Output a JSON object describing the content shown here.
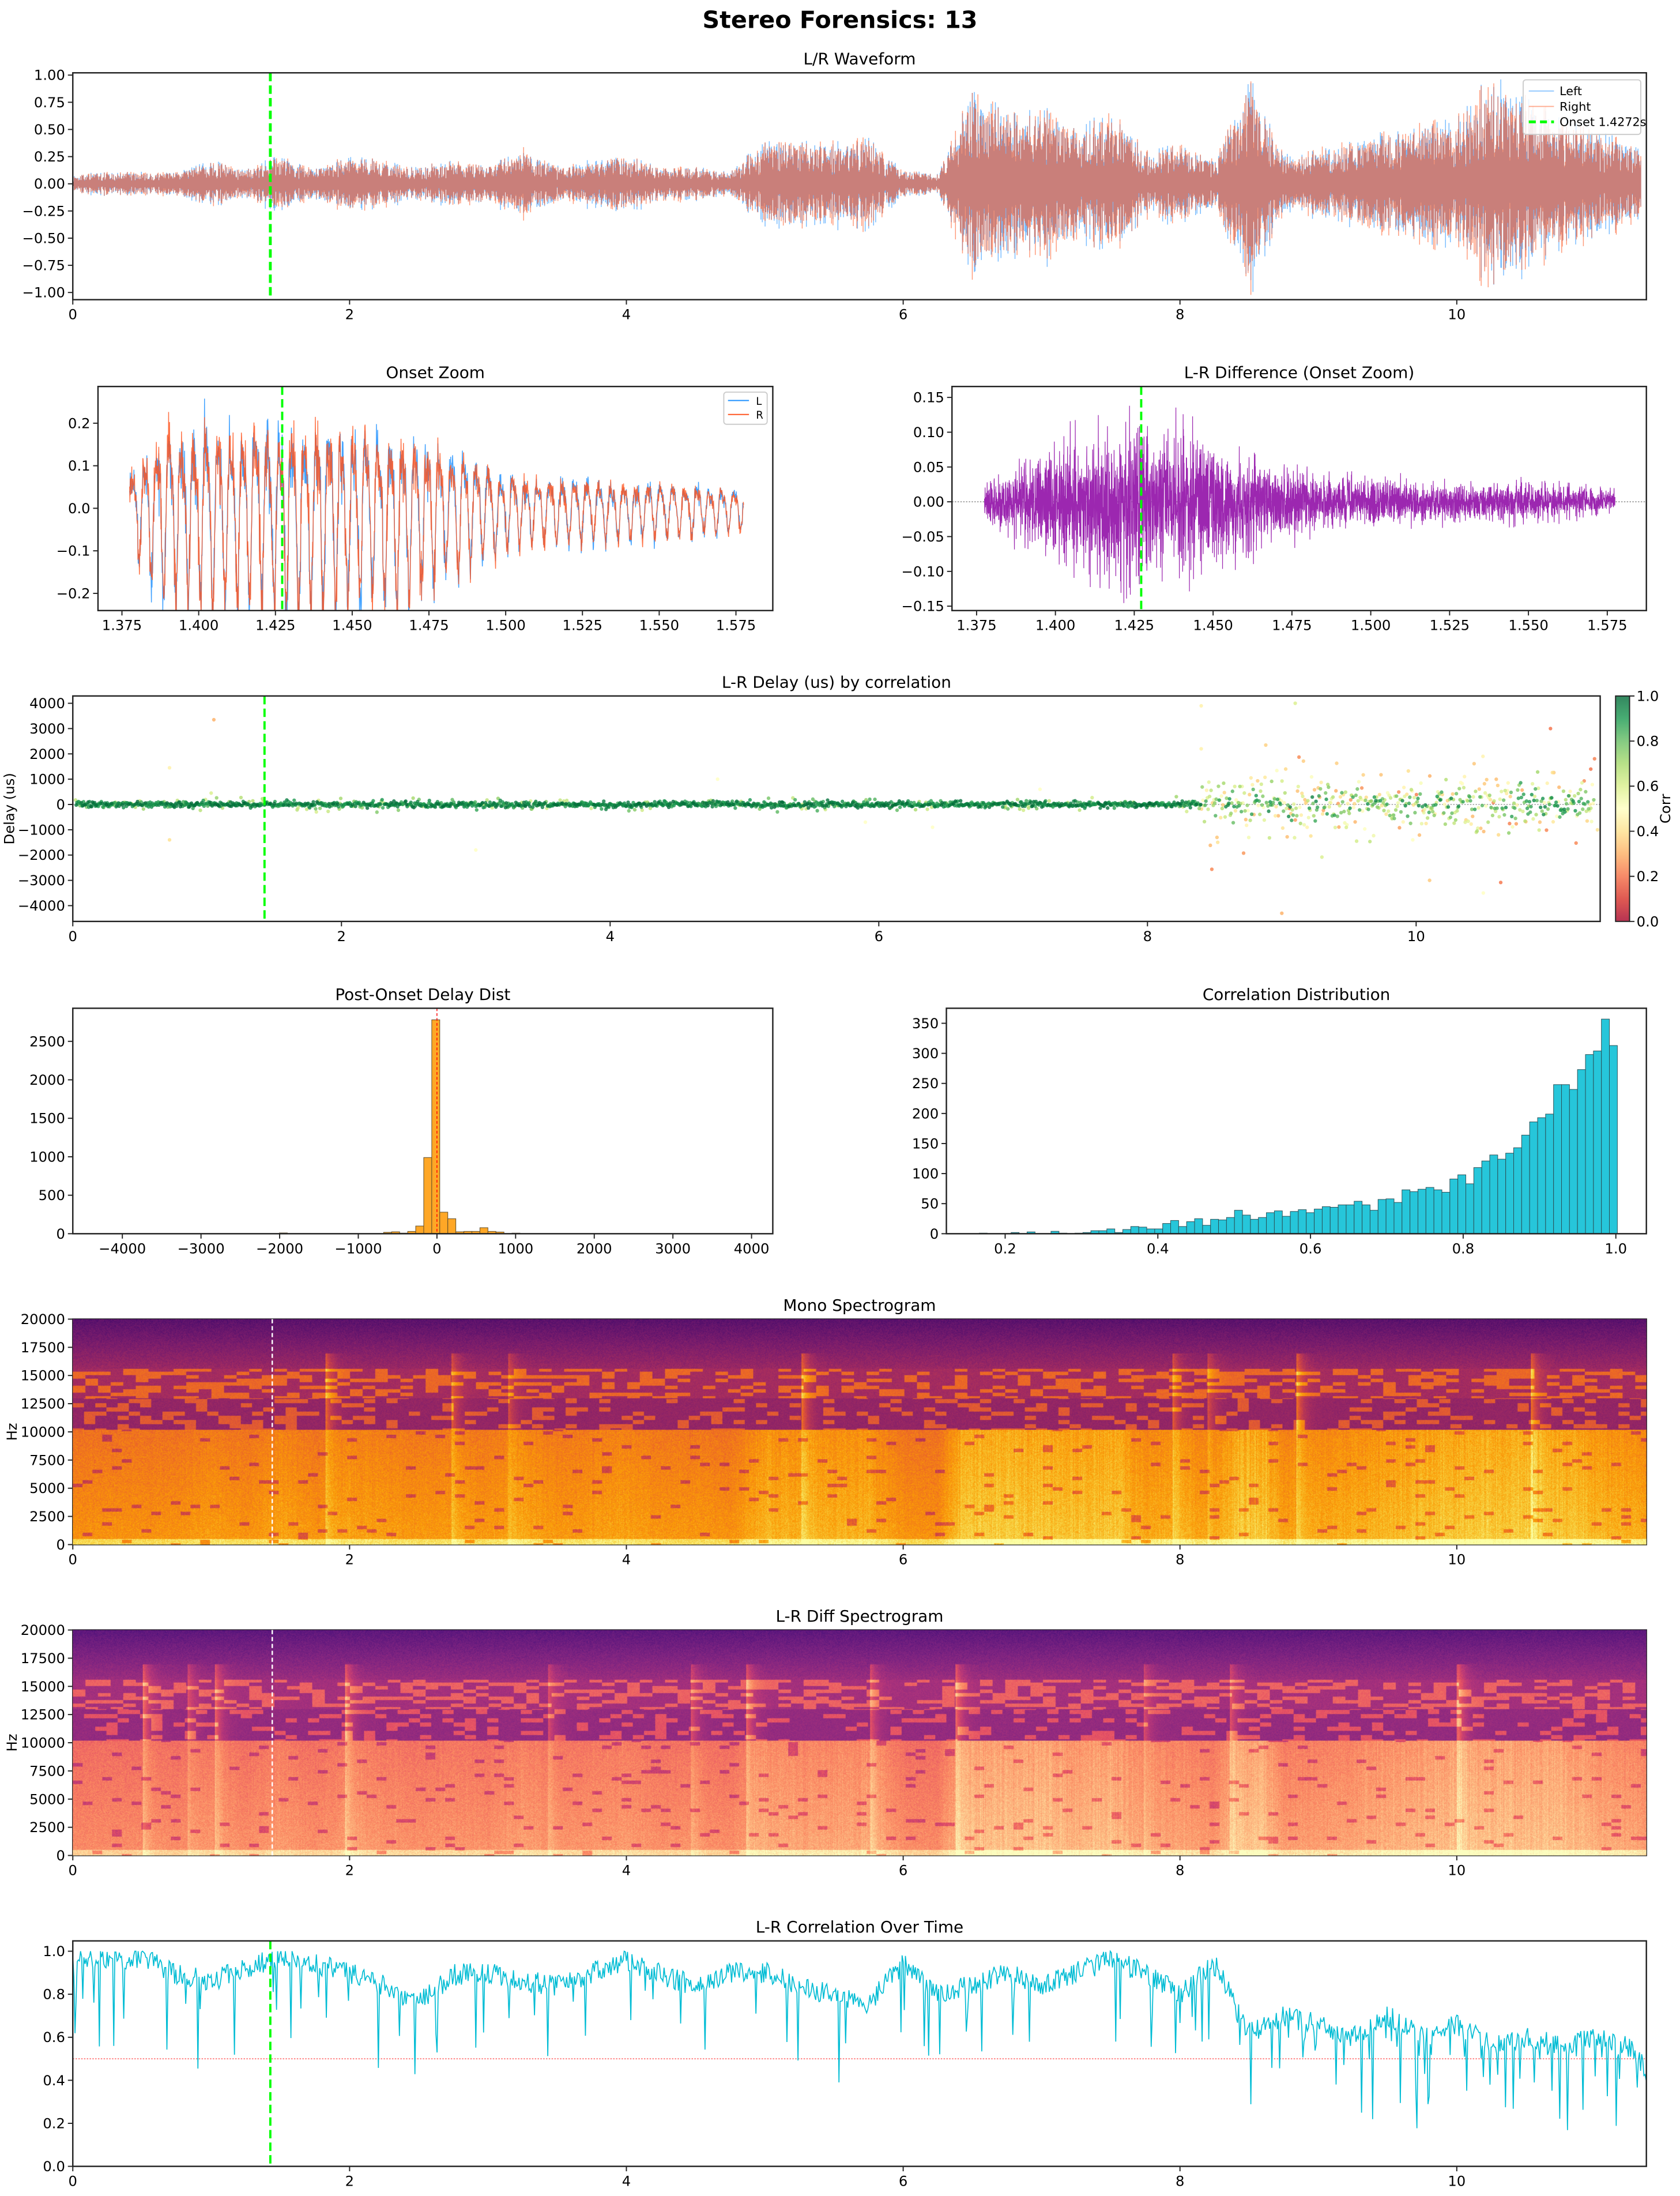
{
  "figure": {
    "suptitle": "Stereo Forensics: 13"
  },
  "chart_data": [
    {
      "type": "line",
      "title": "L/R Waveform",
      "xlim": [
        0,
        11.37
      ],
      "ylim": [
        -1.066,
        1.021
      ],
      "xticks": [
        0,
        2,
        4,
        6,
        8,
        10
      ],
      "xtick_labels": [
        "0",
        "2",
        "4",
        "6",
        "8",
        "10"
      ],
      "yticks": [
        -1,
        -0.75,
        -0.5,
        -0.25,
        0,
        0.25,
        0.5,
        0.75,
        1
      ],
      "ytick_labels": [
        "−1.00",
        "−0.75",
        "−0.50",
        "−0.25",
        "0.00",
        "0.25",
        "0.50",
        "0.75",
        "1.00"
      ],
      "series": [
        {
          "name": "Left",
          "color": "#1E90FF"
        },
        {
          "name": "Right",
          "color": "#FF5722"
        }
      ],
      "peak_envelope": [
        [
          0,
          0.08
        ],
        [
          0.25,
          0.1
        ],
        [
          0.5,
          0.1
        ],
        [
          0.75,
          0.1
        ],
        [
          1.0,
          0.2
        ],
        [
          1.25,
          0.12
        ],
        [
          1.5,
          0.25
        ],
        [
          1.75,
          0.12
        ],
        [
          2.0,
          0.25
        ],
        [
          2.25,
          0.2
        ],
        [
          2.5,
          0.15
        ],
        [
          2.75,
          0.2
        ],
        [
          3.0,
          0.15
        ],
        [
          3.25,
          0.3
        ],
        [
          3.5,
          0.15
        ],
        [
          3.75,
          0.2
        ],
        [
          4.0,
          0.25
        ],
        [
          4.25,
          0.15
        ],
        [
          4.5,
          0.15
        ],
        [
          4.75,
          0.1
        ],
        [
          5.0,
          0.4
        ],
        [
          5.25,
          0.35
        ],
        [
          5.5,
          0.35
        ],
        [
          5.75,
          0.4
        ],
        [
          6.0,
          0.12
        ],
        [
          6.25,
          0.08
        ],
        [
          6.5,
          0.8
        ],
        [
          6.75,
          0.6
        ],
        [
          7.0,
          0.65
        ],
        [
          7.25,
          0.5
        ],
        [
          7.5,
          0.6
        ],
        [
          7.75,
          0.3
        ],
        [
          8.0,
          0.35
        ],
        [
          8.25,
          0.2
        ],
        [
          8.5,
          0.9
        ],
        [
          8.75,
          0.25
        ],
        [
          9.0,
          0.3
        ],
        [
          9.25,
          0.35
        ],
        [
          9.5,
          0.45
        ],
        [
          9.75,
          0.5
        ],
        [
          10.0,
          0.6
        ],
        [
          10.25,
          0.9
        ],
        [
          10.5,
          0.75
        ],
        [
          10.75,
          0.6
        ],
        [
          11.0,
          0.45
        ],
        [
          11.25,
          0.35
        ],
        [
          11.37,
          0.3
        ]
      ],
      "onset": {
        "x": 1.4272,
        "label": "Onset 1.4272s",
        "color": "#00FF00"
      },
      "legend": "top-right"
    },
    {
      "type": "line",
      "title": "Onset Zoom",
      "xlim": [
        1.3672,
        1.587
      ],
      "ylim": [
        -0.2404,
        0.2863
      ],
      "xticks": [
        1.375,
        1.4,
        1.425,
        1.45,
        1.475,
        1.5,
        1.525,
        1.55,
        1.575
      ],
      "xtick_labels": [
        "1.375",
        "1.400",
        "1.425",
        "1.450",
        "1.475",
        "1.500",
        "1.525",
        "1.550",
        "1.575"
      ],
      "yticks": [
        -0.2,
        -0.1,
        0,
        0.1,
        0.2
      ],
      "ytick_labels": [
        "−0.2",
        "−0.1",
        "0.0",
        "0.1",
        "0.2"
      ],
      "series": [
        {
          "name": "L",
          "color": "#1E90FF"
        },
        {
          "name": "R",
          "color": "#FF5722"
        }
      ],
      "data_range": [
        1.3775,
        1.5775
      ],
      "peak_envelope": [
        [
          1.3775,
          0.1
        ],
        [
          1.39,
          0.22
        ],
        [
          1.41,
          0.22
        ],
        [
          1.43,
          0.24
        ],
        [
          1.45,
          0.22
        ],
        [
          1.47,
          0.2
        ],
        [
          1.49,
          0.13
        ],
        [
          1.5,
          0.09
        ],
        [
          1.52,
          0.08
        ],
        [
          1.55,
          0.07
        ],
        [
          1.5775,
          0.05
        ]
      ],
      "dominant_frequency_hz": 250,
      "onset": {
        "x": 1.4272,
        "color": "#00FF00"
      },
      "legend": "top-right"
    },
    {
      "type": "line",
      "title": "L-R Difference (Onset Zoom)",
      "xlim": [
        1.3672,
        1.5874
      ],
      "ylim": [
        -0.1563,
        0.1657
      ],
      "xticks": [
        1.375,
        1.4,
        1.425,
        1.45,
        1.475,
        1.5,
        1.525,
        1.55,
        1.575
      ],
      "xtick_labels": [
        "1.375",
        "1.400",
        "1.425",
        "1.450",
        "1.475",
        "1.500",
        "1.525",
        "1.550",
        "1.575"
      ],
      "yticks": [
        -0.15,
        -0.1,
        -0.05,
        0,
        0.05,
        0.1,
        0.15
      ],
      "ytick_labels": [
        "−0.15",
        "−0.10",
        "−0.05",
        "0.00",
        "0.05",
        "0.10",
        "0.15"
      ],
      "series": [
        {
          "color": "#9C27B0"
        }
      ],
      "data_range": [
        1.3775,
        1.5775
      ],
      "peak_envelope": [
        [
          1.3775,
          0.03
        ],
        [
          1.39,
          0.06
        ],
        [
          1.41,
          0.1
        ],
        [
          1.425,
          0.12
        ],
        [
          1.45,
          0.09
        ],
        [
          1.47,
          0.06
        ],
        [
          1.49,
          0.035
        ],
        [
          1.52,
          0.03
        ],
        [
          1.55,
          0.028
        ],
        [
          1.5775,
          0.018
        ]
      ],
      "onset": {
        "x": 1.4272,
        "color": "#00FF00"
      },
      "zero_line": true
    },
    {
      "type": "scatter",
      "title": "L-R Delay (us) by correlation",
      "ylabel": "Delay (us)",
      "xlim": [
        0,
        11.37
      ],
      "ylim": [
        -4624,
        4289
      ],
      "xticks": [
        0,
        2,
        4,
        6,
        8,
        10
      ],
      "xtick_labels": [
        "0",
        "2",
        "4",
        "6",
        "8",
        "10"
      ],
      "yticks": [
        -4000,
        -3000,
        -2000,
        -1000,
        0,
        1000,
        2000,
        3000,
        4000
      ],
      "ytick_labels": [
        "−4000",
        "−3000",
        "−2000",
        "−1000",
        "0",
        "1000",
        "2000",
        "3000",
        "4000"
      ],
      "colormap": "RdYlGn",
      "colorbar": {
        "label": "Corr",
        "range": [
          0,
          1
        ],
        "ticks": [
          0,
          0.2,
          0.4,
          0.6,
          0.8,
          1.0
        ],
        "tick_labels": [
          "0.0",
          "0.2",
          "0.4",
          "0.6",
          "0.8",
          "1.0"
        ]
      },
      "stable_region": {
        "x": [
          0,
          8.4
        ],
        "delay_spread_us": 60,
        "corr_range": [
          0.8,
          1.0
        ]
      },
      "unstable_region": {
        "x": [
          8.4,
          11.37
        ],
        "delay_spread_us": 700,
        "corr_range": [
          0.2,
          0.95
        ]
      },
      "outliers": [
        [
          1.05,
          3350,
          0.3
        ],
        [
          0.72,
          1450,
          0.45
        ],
        [
          0.72,
          -1400,
          0.4
        ],
        [
          1.03,
          450,
          0.6
        ],
        [
          3.0,
          -1800,
          0.5
        ],
        [
          4.8,
          1000,
          0.5
        ],
        [
          5.9,
          -700,
          0.5
        ],
        [
          6.4,
          -900,
          0.5
        ],
        [
          7.2,
          600,
          0.5
        ],
        [
          8.4,
          3900,
          0.45
        ],
        [
          8.4,
          2200,
          0.45
        ],
        [
          9.0,
          -4300,
          0.3
        ],
        [
          9.1,
          4000,
          0.6
        ],
        [
          10.1,
          -3000,
          0.35
        ],
        [
          10.5,
          -3500,
          0.5
        ],
        [
          11.0,
          3000,
          0.2
        ],
        [
          11.3,
          1400,
          0.2
        ],
        [
          11.35,
          -1000,
          0.4
        ]
      ],
      "onset": {
        "x": 1.4272,
        "color": "#00FF00"
      }
    },
    {
      "type": "bar",
      "title": "Post-Onset Delay Dist",
      "xlim": [
        -4630,
        4270
      ],
      "ylim": [
        0,
        2930
      ],
      "xticks": [
        -4000,
        -3000,
        -2000,
        -1000,
        0,
        1000,
        2000,
        3000,
        4000
      ],
      "xtick_labels": [
        "−4000",
        "−3000",
        "−2000",
        "−1000",
        "0",
        "1000",
        "2000",
        "3000",
        "4000"
      ],
      "yticks": [
        0,
        500,
        1000,
        1500,
        2000,
        2500
      ],
      "ytick_labels": [
        "0",
        "500",
        "1000",
        "1500",
        "2000",
        "2500"
      ],
      "bar_color": "#FFA726",
      "bin_width": 102,
      "bins": [
        [
          -1953,
          10
        ],
        [
          -1851,
          3
        ],
        [
          -1749,
          3
        ],
        [
          -1647,
          3
        ],
        [
          -1341,
          1
        ],
        [
          -933,
          1
        ],
        [
          -831,
          1
        ],
        [
          -627,
          18
        ],
        [
          -525,
          25
        ],
        [
          -423,
          8
        ],
        [
          -321,
          30
        ],
        [
          -219,
          100
        ],
        [
          -117,
          990
        ],
        [
          -15,
          2780
        ],
        [
          87,
          280
        ],
        [
          189,
          195
        ],
        [
          291,
          25
        ],
        [
          393,
          30
        ],
        [
          495,
          30
        ],
        [
          597,
          78
        ],
        [
          699,
          30
        ],
        [
          801,
          22
        ],
        [
          1005,
          8
        ],
        [
          1515,
          2
        ],
        [
          1923,
          2
        ],
        [
          2025,
          2
        ]
      ],
      "reference_line": {
        "x": 0,
        "color": "#FF0000"
      }
    },
    {
      "type": "bar",
      "title": "Correlation Distribution",
      "xlim": [
        0.123,
        1.04
      ],
      "ylim": [
        0,
        375
      ],
      "xticks": [
        0.2,
        0.4,
        0.6,
        0.8,
        1.0
      ],
      "xtick_labels": [
        "0.2",
        "0.4",
        "0.6",
        "0.8",
        "1.0"
      ],
      "yticks": [
        0,
        50,
        100,
        150,
        200,
        250,
        300,
        350
      ],
      "ytick_labels": [
        "0",
        "50",
        "100",
        "150",
        "200",
        "250",
        "300",
        "350"
      ],
      "bar_color": "#26C6DA",
      "bin_start": 0.166,
      "bin_width": 0.01045,
      "counts": [
        1,
        0,
        0,
        0,
        2,
        0,
        3,
        0,
        0,
        4,
        1,
        0,
        1,
        2,
        5,
        5,
        8,
        2,
        7,
        12,
        11,
        8,
        8,
        17,
        22,
        12,
        20,
        25,
        14,
        24,
        23,
        27,
        39,
        31,
        24,
        27,
        35,
        38,
        29,
        37,
        40,
        35,
        41,
        45,
        44,
        48,
        48,
        54,
        48,
        39,
        57,
        58,
        52,
        73,
        70,
        74,
        77,
        73,
        69,
        91,
        98,
        83,
        110,
        121,
        131,
        124,
        134,
        143,
        164,
        186,
        193,
        199,
        248,
        248,
        240,
        273,
        298,
        304,
        357,
        313
      ]
    },
    {
      "type": "heatmap",
      "title": "Mono Spectrogram",
      "ylabel": "Hz",
      "colormap": "inferno",
      "xlim": [
        0,
        11.37
      ],
      "ylim": [
        0,
        20000
      ],
      "xticks": [
        0,
        2,
        4,
        6,
        8,
        10
      ],
      "xtick_labels": [
        "0",
        "2",
        "4",
        "6",
        "8",
        "10"
      ],
      "yticks": [
        0,
        2500,
        5000,
        7500,
        10000,
        12500,
        15000,
        17500,
        20000
      ],
      "ytick_labels": [
        "0",
        "2500",
        "5000",
        "7500",
        "10000",
        "12500",
        "15000",
        "17500",
        "20000"
      ],
      "onset": {
        "x": 1.4272,
        "color": "#FFFFFF"
      }
    },
    {
      "type": "heatmap",
      "title": "L-R Diff Spectrogram",
      "ylabel": "Hz",
      "colormap": "magma",
      "xlim": [
        0,
        11.37
      ],
      "ylim": [
        0,
        20000
      ],
      "xticks": [
        0,
        2,
        4,
        6,
        8,
        10
      ],
      "xtick_labels": [
        "0",
        "2",
        "4",
        "6",
        "8",
        "10"
      ],
      "yticks": [
        0,
        2500,
        5000,
        7500,
        10000,
        12500,
        15000,
        17500,
        20000
      ],
      "ytick_labels": [
        "0",
        "2500",
        "5000",
        "7500",
        "10000",
        "12500",
        "15000",
        "17500",
        "20000"
      ],
      "onset": {
        "x": 1.4272,
        "color": "#FFFFFF"
      }
    },
    {
      "type": "line",
      "title": "L-R Correlation Over Time",
      "xlim": [
        0,
        11.37
      ],
      "ylim": [
        0,
        1.048
      ],
      "xticks": [
        0,
        2,
        4,
        6,
        8,
        10
      ],
      "xtick_labels": [
        "0",
        "2",
        "4",
        "6",
        "8",
        "10"
      ],
      "yticks": [
        0,
        0.2,
        0.4,
        0.6,
        0.8,
        1.0
      ],
      "ytick_labels": [
        "0.0",
        "0.2",
        "0.4",
        "0.6",
        "0.8",
        "1.0"
      ],
      "series": [
        {
          "color": "#00BCD4"
        }
      ],
      "typical_level": [
        [
          0,
          0.95
        ],
        [
          0.25,
          0.92
        ],
        [
          0.5,
          0.93
        ],
        [
          0.75,
          0.85
        ],
        [
          1.0,
          0.82
        ],
        [
          1.25,
          0.88
        ],
        [
          1.5,
          0.94
        ],
        [
          1.75,
          0.9
        ],
        [
          2.0,
          0.86
        ],
        [
          2.25,
          0.8
        ],
        [
          2.5,
          0.72
        ],
        [
          2.75,
          0.85
        ],
        [
          3.0,
          0.86
        ],
        [
          3.25,
          0.82
        ],
        [
          3.5,
          0.8
        ],
        [
          3.75,
          0.86
        ],
        [
          4.0,
          0.92
        ],
        [
          4.25,
          0.85
        ],
        [
          4.5,
          0.8
        ],
        [
          4.75,
          0.86
        ],
        [
          5.0,
          0.86
        ],
        [
          5.25,
          0.8
        ],
        [
          5.5,
          0.75
        ],
        [
          5.75,
          0.72
        ],
        [
          6.0,
          0.9
        ],
        [
          6.25,
          0.76
        ],
        [
          6.5,
          0.8
        ],
        [
          6.75,
          0.86
        ],
        [
          7.0,
          0.8
        ],
        [
          7.25,
          0.86
        ],
        [
          7.5,
          0.92
        ],
        [
          7.75,
          0.86
        ],
        [
          8.0,
          0.76
        ],
        [
          8.25,
          0.9
        ],
        [
          8.5,
          0.62
        ],
        [
          8.75,
          0.7
        ],
        [
          9.0,
          0.66
        ],
        [
          9.25,
          0.6
        ],
        [
          9.5,
          0.7
        ],
        [
          9.75,
          0.6
        ],
        [
          10.0,
          0.66
        ],
        [
          10.25,
          0.56
        ],
        [
          10.5,
          0.6
        ],
        [
          10.75,
          0.56
        ],
        [
          11.0,
          0.6
        ],
        [
          11.25,
          0.55
        ],
        [
          11.37,
          0.45
        ]
      ],
      "threshold": {
        "y": 0.5,
        "color": "#FF0000"
      },
      "onset": {
        "x": 1.4272,
        "color": "#00FF00"
      }
    }
  ]
}
